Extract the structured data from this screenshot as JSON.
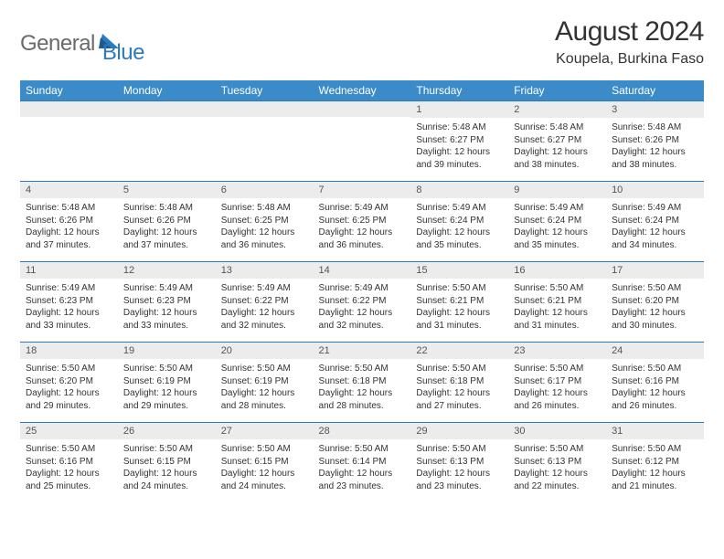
{
  "logo": {
    "text_left": "General",
    "text_right": "Blue"
  },
  "title": "August 2024",
  "location": "Koupela, Burkina Faso",
  "colors": {
    "header_bg": "#3b8bc9",
    "header_text": "#ffffff",
    "row_border": "#2a7ac0",
    "daynum_bg": "#ececec",
    "logo_gray": "#6a6a6a",
    "logo_blue": "#2a7ac0",
    "body_text": "#333333"
  },
  "typography": {
    "title_fontsize": 30,
    "subtitle_fontsize": 16,
    "header_fontsize": 12,
    "daynum_fontsize": 11,
    "body_fontsize": 10
  },
  "weekdays": [
    "Sunday",
    "Monday",
    "Tuesday",
    "Wednesday",
    "Thursday",
    "Friday",
    "Saturday"
  ],
  "weeks": [
    [
      {
        "empty": true
      },
      {
        "empty": true
      },
      {
        "empty": true
      },
      {
        "empty": true
      },
      {
        "day": "1",
        "sunrise": "Sunrise: 5:48 AM",
        "sunset": "Sunset: 6:27 PM",
        "daylight": "Daylight: 12 hours and 39 minutes."
      },
      {
        "day": "2",
        "sunrise": "Sunrise: 5:48 AM",
        "sunset": "Sunset: 6:27 PM",
        "daylight": "Daylight: 12 hours and 38 minutes."
      },
      {
        "day": "3",
        "sunrise": "Sunrise: 5:48 AM",
        "sunset": "Sunset: 6:26 PM",
        "daylight": "Daylight: 12 hours and 38 minutes."
      }
    ],
    [
      {
        "day": "4",
        "sunrise": "Sunrise: 5:48 AM",
        "sunset": "Sunset: 6:26 PM",
        "daylight": "Daylight: 12 hours and 37 minutes."
      },
      {
        "day": "5",
        "sunrise": "Sunrise: 5:48 AM",
        "sunset": "Sunset: 6:26 PM",
        "daylight": "Daylight: 12 hours and 37 minutes."
      },
      {
        "day": "6",
        "sunrise": "Sunrise: 5:48 AM",
        "sunset": "Sunset: 6:25 PM",
        "daylight": "Daylight: 12 hours and 36 minutes."
      },
      {
        "day": "7",
        "sunrise": "Sunrise: 5:49 AM",
        "sunset": "Sunset: 6:25 PM",
        "daylight": "Daylight: 12 hours and 36 minutes."
      },
      {
        "day": "8",
        "sunrise": "Sunrise: 5:49 AM",
        "sunset": "Sunset: 6:24 PM",
        "daylight": "Daylight: 12 hours and 35 minutes."
      },
      {
        "day": "9",
        "sunrise": "Sunrise: 5:49 AM",
        "sunset": "Sunset: 6:24 PM",
        "daylight": "Daylight: 12 hours and 35 minutes."
      },
      {
        "day": "10",
        "sunrise": "Sunrise: 5:49 AM",
        "sunset": "Sunset: 6:24 PM",
        "daylight": "Daylight: 12 hours and 34 minutes."
      }
    ],
    [
      {
        "day": "11",
        "sunrise": "Sunrise: 5:49 AM",
        "sunset": "Sunset: 6:23 PM",
        "daylight": "Daylight: 12 hours and 33 minutes."
      },
      {
        "day": "12",
        "sunrise": "Sunrise: 5:49 AM",
        "sunset": "Sunset: 6:23 PM",
        "daylight": "Daylight: 12 hours and 33 minutes."
      },
      {
        "day": "13",
        "sunrise": "Sunrise: 5:49 AM",
        "sunset": "Sunset: 6:22 PM",
        "daylight": "Daylight: 12 hours and 32 minutes."
      },
      {
        "day": "14",
        "sunrise": "Sunrise: 5:49 AM",
        "sunset": "Sunset: 6:22 PM",
        "daylight": "Daylight: 12 hours and 32 minutes."
      },
      {
        "day": "15",
        "sunrise": "Sunrise: 5:50 AM",
        "sunset": "Sunset: 6:21 PM",
        "daylight": "Daylight: 12 hours and 31 minutes."
      },
      {
        "day": "16",
        "sunrise": "Sunrise: 5:50 AM",
        "sunset": "Sunset: 6:21 PM",
        "daylight": "Daylight: 12 hours and 31 minutes."
      },
      {
        "day": "17",
        "sunrise": "Sunrise: 5:50 AM",
        "sunset": "Sunset: 6:20 PM",
        "daylight": "Daylight: 12 hours and 30 minutes."
      }
    ],
    [
      {
        "day": "18",
        "sunrise": "Sunrise: 5:50 AM",
        "sunset": "Sunset: 6:20 PM",
        "daylight": "Daylight: 12 hours and 29 minutes."
      },
      {
        "day": "19",
        "sunrise": "Sunrise: 5:50 AM",
        "sunset": "Sunset: 6:19 PM",
        "daylight": "Daylight: 12 hours and 29 minutes."
      },
      {
        "day": "20",
        "sunrise": "Sunrise: 5:50 AM",
        "sunset": "Sunset: 6:19 PM",
        "daylight": "Daylight: 12 hours and 28 minutes."
      },
      {
        "day": "21",
        "sunrise": "Sunrise: 5:50 AM",
        "sunset": "Sunset: 6:18 PM",
        "daylight": "Daylight: 12 hours and 28 minutes."
      },
      {
        "day": "22",
        "sunrise": "Sunrise: 5:50 AM",
        "sunset": "Sunset: 6:18 PM",
        "daylight": "Daylight: 12 hours and 27 minutes."
      },
      {
        "day": "23",
        "sunrise": "Sunrise: 5:50 AM",
        "sunset": "Sunset: 6:17 PM",
        "daylight": "Daylight: 12 hours and 26 minutes."
      },
      {
        "day": "24",
        "sunrise": "Sunrise: 5:50 AM",
        "sunset": "Sunset: 6:16 PM",
        "daylight": "Daylight: 12 hours and 26 minutes."
      }
    ],
    [
      {
        "day": "25",
        "sunrise": "Sunrise: 5:50 AM",
        "sunset": "Sunset: 6:16 PM",
        "daylight": "Daylight: 12 hours and 25 minutes."
      },
      {
        "day": "26",
        "sunrise": "Sunrise: 5:50 AM",
        "sunset": "Sunset: 6:15 PM",
        "daylight": "Daylight: 12 hours and 24 minutes."
      },
      {
        "day": "27",
        "sunrise": "Sunrise: 5:50 AM",
        "sunset": "Sunset: 6:15 PM",
        "daylight": "Daylight: 12 hours and 24 minutes."
      },
      {
        "day": "28",
        "sunrise": "Sunrise: 5:50 AM",
        "sunset": "Sunset: 6:14 PM",
        "daylight": "Daylight: 12 hours and 23 minutes."
      },
      {
        "day": "29",
        "sunrise": "Sunrise: 5:50 AM",
        "sunset": "Sunset: 6:13 PM",
        "daylight": "Daylight: 12 hours and 23 minutes."
      },
      {
        "day": "30",
        "sunrise": "Sunrise: 5:50 AM",
        "sunset": "Sunset: 6:13 PM",
        "daylight": "Daylight: 12 hours and 22 minutes."
      },
      {
        "day": "31",
        "sunrise": "Sunrise: 5:50 AM",
        "sunset": "Sunset: 6:12 PM",
        "daylight": "Daylight: 12 hours and 21 minutes."
      }
    ]
  ]
}
